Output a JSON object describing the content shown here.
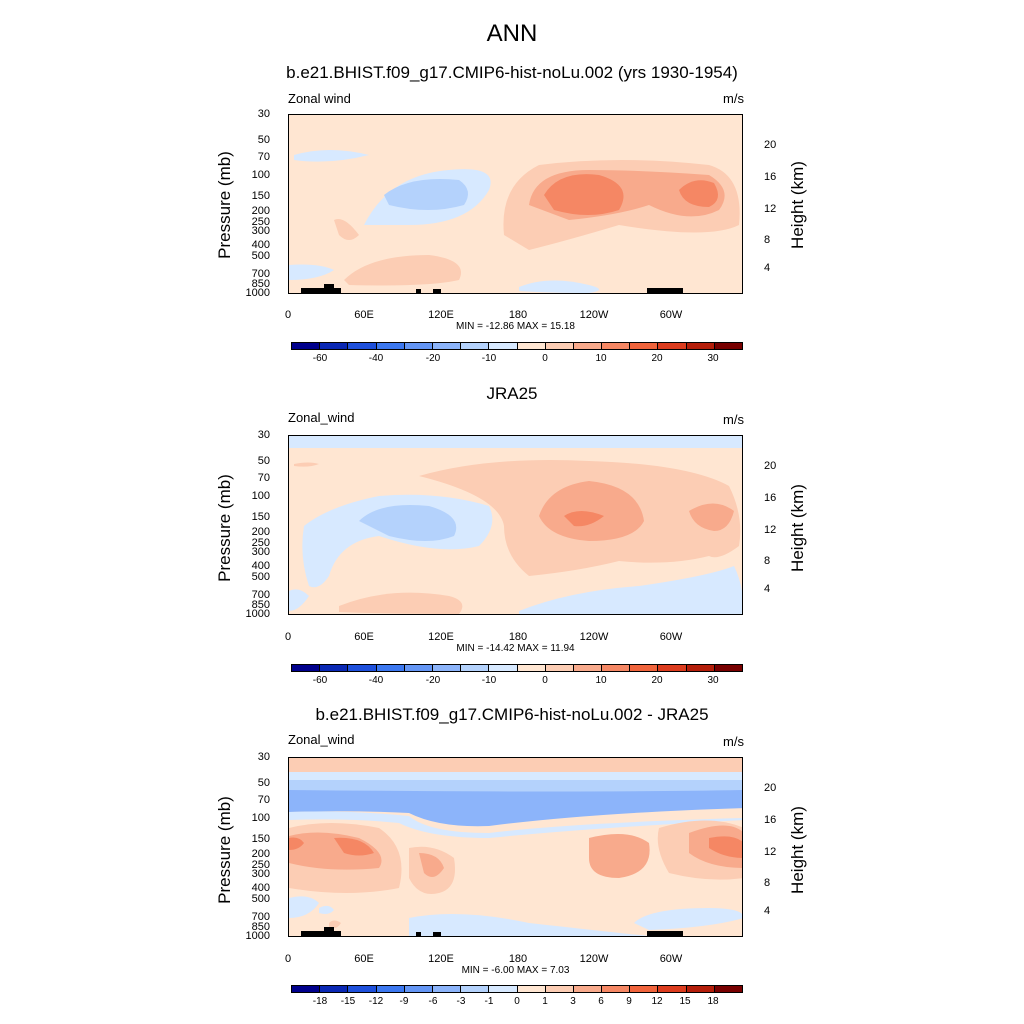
{
  "figure": {
    "title": "ANN"
  },
  "panels": [
    {
      "title": "b.e21.BHIST.f09_g17.CMIP6-hist-noLu.002 (yrs 1930-1954)",
      "left_label": "Zonal wind",
      "right_label": "m/s",
      "ylabel": "Pressure (mb)",
      "ylabel2": "Height (km)",
      "minmax": "MIN = -12.86  MAX =  15.18",
      "colorbar_labels": [
        "-60",
        "-40",
        "-20",
        "-10",
        "0",
        "10",
        "20",
        "30"
      ]
    },
    {
      "title": "JRA25",
      "left_label": "Zonal_wind",
      "right_label": "m/s",
      "ylabel": "Pressure (mb)",
      "ylabel2": "Height (km)",
      "minmax": "MIN = -14.42  MAX =  11.94",
      "colorbar_labels": [
        "-60",
        "-40",
        "-20",
        "-10",
        "0",
        "10",
        "20",
        "30"
      ]
    },
    {
      "title": "b.e21.BHIST.f09_g17.CMIP6-hist-noLu.002 - JRA25",
      "left_label": "Zonal_wind",
      "right_label": "m/s",
      "ylabel": "Pressure (mb)",
      "ylabel2": "Height (km)",
      "minmax": "MIN =  -6.00  MAX =   7.03",
      "colorbar_labels": [
        "-18",
        "-15",
        "-12",
        "-9",
        "-6",
        "-3",
        "-1",
        "0",
        "1",
        "3",
        "6",
        "9",
        "12",
        "15",
        "18"
      ]
    }
  ],
  "chart_data": [
    {
      "type": "heatmap",
      "title": "b.e21.BHIST.f09_g17.CMIP6-hist-noLu.002 (yrs 1930-1954)",
      "variable": "Zonal wind",
      "units": "m/s",
      "xlabel": "",
      "ylabel": "Pressure (mb)",
      "ylabel2": "Height (km)",
      "x_ticks": [
        "0",
        "60E",
        "120E",
        "180",
        "120W",
        "60W"
      ],
      "y_ticks": [
        "30",
        "50",
        "70",
        "100",
        "150",
        "200",
        "250",
        "300",
        "400",
        "500",
        "700",
        "850",
        "1000"
      ],
      "y2_ticks": [
        "20",
        "16",
        "12",
        "8",
        "4"
      ],
      "min": -12.86,
      "max": 15.18,
      "colorbar_levels": [
        "-60",
        "-40",
        "-20",
        "-10",
        "0",
        "10",
        "20",
        "30"
      ]
    },
    {
      "type": "heatmap",
      "title": "JRA25",
      "variable": "Zonal_wind",
      "units": "m/s",
      "xlabel": "",
      "ylabel": "Pressure (mb)",
      "ylabel2": "Height (km)",
      "x_ticks": [
        "0",
        "60E",
        "120E",
        "180",
        "120W",
        "60W"
      ],
      "y_ticks": [
        "30",
        "50",
        "70",
        "100",
        "150",
        "200",
        "250",
        "300",
        "400",
        "500",
        "700",
        "850",
        "1000"
      ],
      "y2_ticks": [
        "20",
        "16",
        "12",
        "8",
        "4"
      ],
      "min": -14.42,
      "max": 11.94,
      "colorbar_levels": [
        "-60",
        "-40",
        "-20",
        "-10",
        "0",
        "10",
        "20",
        "30"
      ]
    },
    {
      "type": "heatmap",
      "title": "b.e21.BHIST.f09_g17.CMIP6-hist-noLu.002 - JRA25",
      "variable": "Zonal_wind",
      "units": "m/s",
      "xlabel": "",
      "ylabel": "Pressure (mb)",
      "ylabel2": "Height (km)",
      "x_ticks": [
        "0",
        "60E",
        "120E",
        "180",
        "120W",
        "60W"
      ],
      "y_ticks": [
        "30",
        "50",
        "70",
        "100",
        "150",
        "200",
        "250",
        "300",
        "400",
        "500",
        "700",
        "850",
        "1000"
      ],
      "y2_ticks": [
        "20",
        "16",
        "12",
        "8",
        "4"
      ],
      "min": -6.0,
      "max": 7.03,
      "colorbar_levels": [
        "-18",
        "-15",
        "-12",
        "-9",
        "-6",
        "-3",
        "-1",
        "0",
        "1",
        "3",
        "6",
        "9",
        "12",
        "15",
        "18"
      ]
    }
  ],
  "colors": {
    "palette": [
      "#00008c",
      "#0a28b4",
      "#1e50dc",
      "#3c78f0",
      "#6496f5",
      "#8cb4fa",
      "#b4d2fc",
      "#d7e9ff",
      "#ffe6d2",
      "#fccdb4",
      "#f8aa8c",
      "#f58764",
      "#f0643c",
      "#dc3c1e",
      "#b41e0a",
      "#780000"
    ]
  }
}
